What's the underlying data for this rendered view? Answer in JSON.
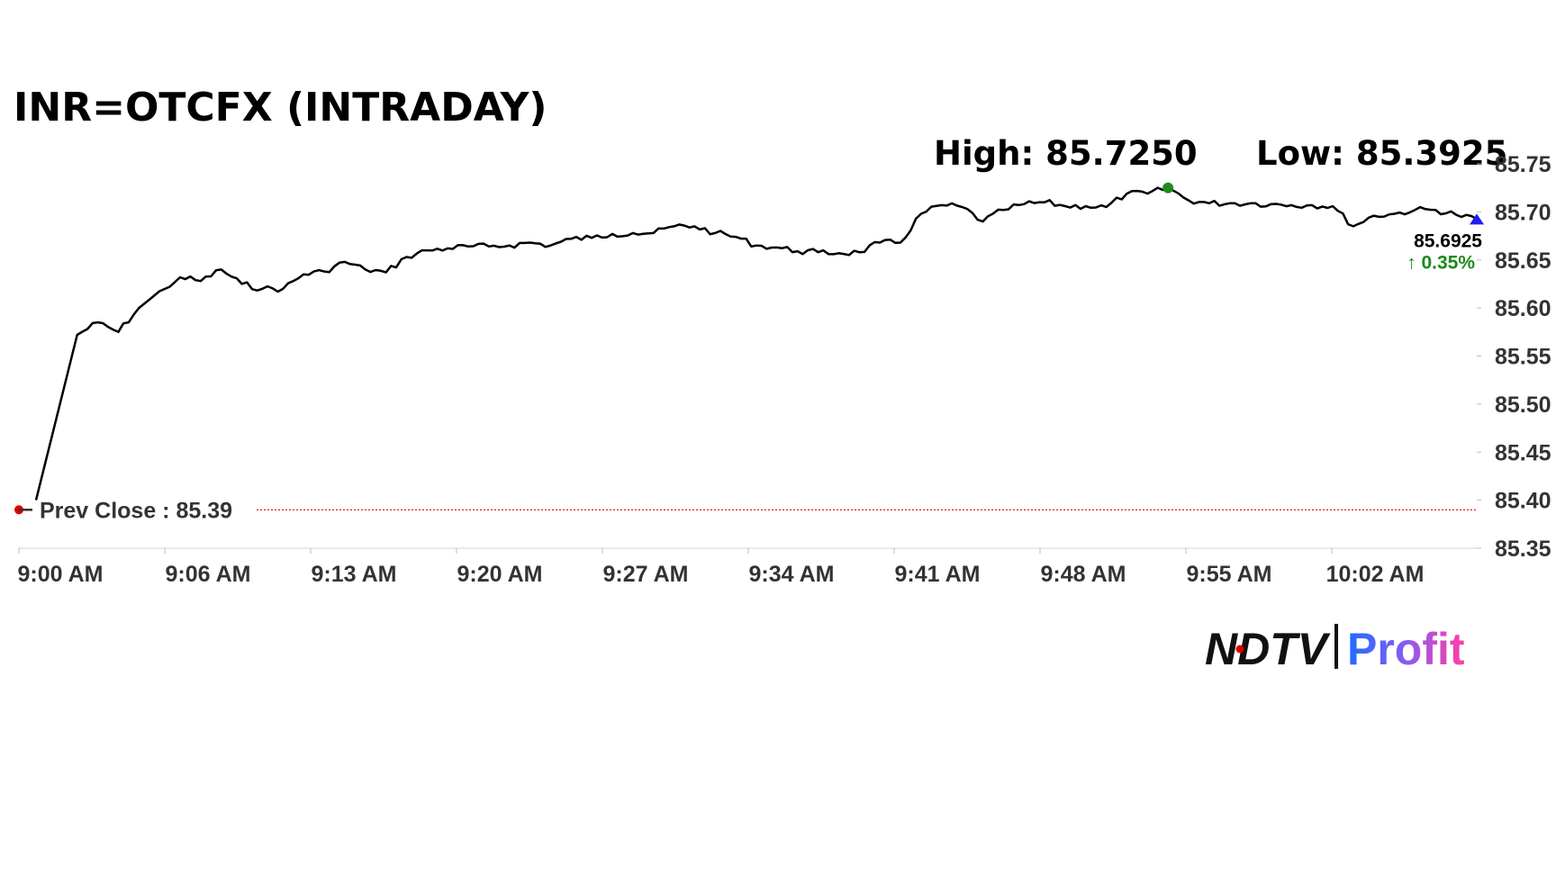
{
  "chart_data": {
    "type": "line",
    "title": "INR=OTCFX (INTRADAY)",
    "high_label": "High: 85.7250",
    "low_label": "Low: 85.3925",
    "high_value": 85.725,
    "low_value": 85.3925,
    "last_value_label": "85.6925",
    "change_label": "0.35%",
    "change_direction": "up",
    "prev_close_label": "Prev Close : 85.39",
    "prev_close_value": 85.39,
    "ylim": [
      85.35,
      85.75
    ],
    "yticks": [
      "85.75",
      "85.70",
      "85.65",
      "85.60",
      "85.55",
      "85.50",
      "85.45",
      "85.40",
      "85.35"
    ],
    "xticks": [
      "9:00 AM",
      "9:06 AM",
      "9:13 AM",
      "9:20 AM",
      "9:27 AM",
      "9:34 AM",
      "9:41 AM",
      "9:48 AM",
      "9:55 AM",
      "10:02 AM"
    ],
    "x_minutes": [
      0,
      2,
      3,
      4,
      5,
      7,
      8,
      9,
      10,
      11,
      12,
      13,
      14,
      15,
      16,
      17,
      18,
      19,
      20,
      21,
      22,
      23,
      24,
      25,
      26,
      27,
      28,
      29,
      30,
      31,
      32,
      33,
      34,
      35,
      36,
      37,
      38,
      39,
      40,
      41,
      42,
      43,
      44,
      45,
      46,
      47,
      48,
      49,
      50,
      51,
      52,
      53,
      54,
      55,
      56,
      57,
      58,
      59,
      60,
      61,
      62,
      63,
      64,
      65,
      66,
      67,
      68,
      69,
      70
    ],
    "values": [
      85.4,
      85.572,
      85.585,
      85.575,
      85.6,
      85.632,
      85.628,
      85.64,
      85.625,
      85.62,
      85.62,
      85.635,
      85.638,
      85.648,
      85.64,
      85.637,
      85.653,
      85.66,
      85.662,
      85.664,
      85.664,
      85.665,
      85.668,
      85.665,
      85.672,
      85.673,
      85.677,
      85.678,
      85.678,
      85.685,
      85.685,
      85.678,
      85.674,
      85.665,
      85.663,
      85.659,
      85.658,
      85.657,
      85.658,
      85.668,
      85.668,
      85.698,
      85.707,
      85.705,
      85.69,
      85.702,
      85.708,
      85.71,
      85.706,
      85.706,
      85.705,
      85.719,
      85.719,
      85.725,
      85.712,
      85.709,
      85.709,
      85.709,
      85.708,
      85.707,
      85.707,
      85.706,
      85.685,
      85.696,
      85.698,
      85.702,
      85.702,
      85.697,
      85.6925
    ],
    "series_color": "#000000",
    "high_marker_color": "#1e8c1e",
    "last_marker_color": "#1e1ef0",
    "prev_close_color": "#e00000",
    "change_color": "#1a8a1a",
    "grid": false
  },
  "branding": {
    "ndtv": "NDTV",
    "profit": "Profit"
  }
}
